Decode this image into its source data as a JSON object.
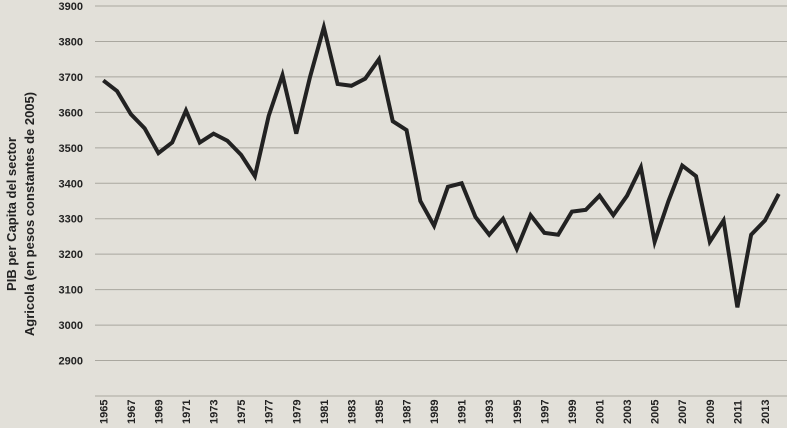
{
  "chart_data": {
    "type": "line",
    "y_label_lines": [
      "PIB per Capita del sector",
      "Agricola (en pesos constantes de 2005)"
    ],
    "x": [
      1965,
      1966,
      1967,
      1968,
      1969,
      1970,
      1971,
      1972,
      1973,
      1974,
      1975,
      1976,
      1977,
      1978,
      1979,
      1980,
      1981,
      1982,
      1983,
      1984,
      1985,
      1986,
      1987,
      1988,
      1989,
      1990,
      1991,
      1992,
      1993,
      1994,
      1995,
      1996,
      1997,
      1998,
      1999,
      2000,
      2001,
      2002,
      2003,
      2004,
      2005,
      2006,
      2007,
      2008,
      2009,
      2010,
      2011,
      2012,
      2013,
      2014
    ],
    "values": [
      3690,
      3660,
      3595,
      3555,
      3485,
      3515,
      3605,
      3515,
      3540,
      3520,
      3480,
      3420,
      3590,
      3705,
      3540,
      3700,
      3840,
      3680,
      3675,
      3695,
      3750,
      3575,
      3550,
      3350,
      3280,
      3390,
      3400,
      3305,
      3255,
      3300,
      3215,
      3310,
      3260,
      3255,
      3320,
      3325,
      3365,
      3310,
      3365,
      3445,
      3235,
      3350,
      3450,
      3420,
      3235,
      3295,
      3050,
      3255,
      3295,
      3370
    ],
    "color": "#222222",
    "xlim": [
      1964.4,
      2014.6
    ],
    "xticks": [
      1965,
      1967,
      1969,
      1971,
      1973,
      1975,
      1977,
      1979,
      1981,
      1983,
      1985,
      1987,
      1989,
      1991,
      1993,
      1995,
      1997,
      1999,
      2001,
      2003,
      2005,
      2007,
      2009,
      2011,
      2013
    ],
    "ylim": [
      2800,
      3900
    ],
    "yticks": [
      2900,
      3000,
      3100,
      3200,
      3300,
      3400,
      3500,
      3600,
      3700,
      3800,
      3900
    ],
    "grid": true
  }
}
